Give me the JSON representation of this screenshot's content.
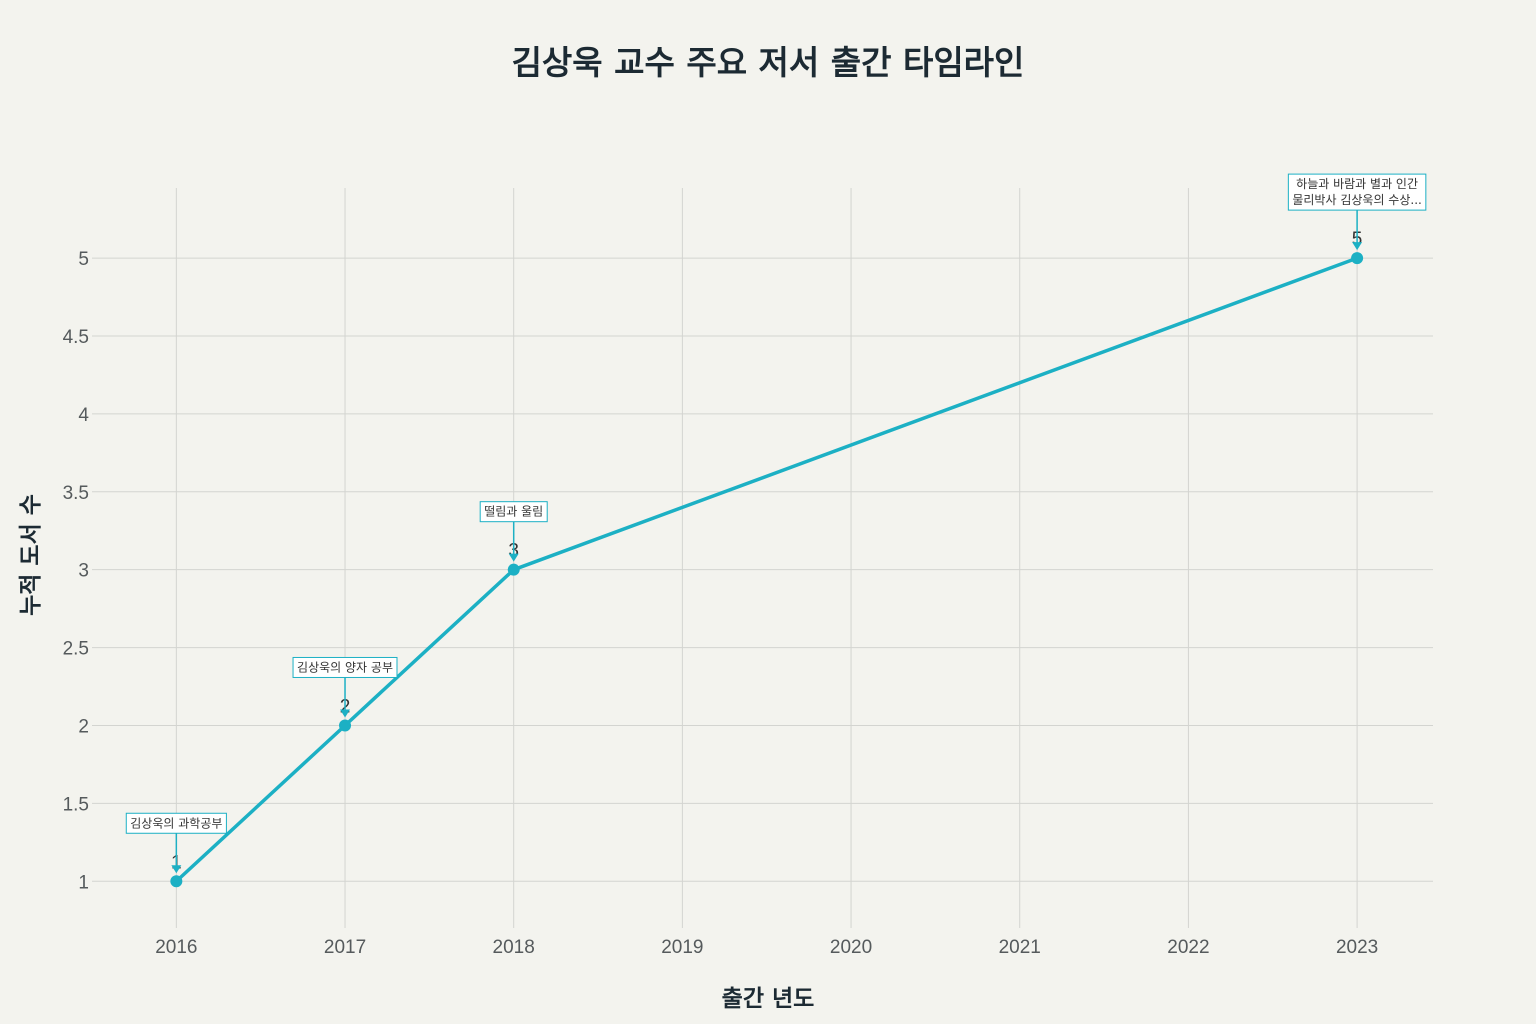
{
  "chart_data": {
    "type": "line",
    "title": "김상욱 교수 주요 저서 출간 타임라인",
    "xlabel": "출간 년도",
    "ylabel": "누적 도서 수",
    "x": [
      2016,
      2017,
      2018,
      2023
    ],
    "xlim": [
      2015.5,
      2023.45
    ],
    "ylim": [
      0.7,
      5.45
    ],
    "x_ticks": [
      2016,
      2017,
      2018,
      2019,
      2020,
      2021,
      2022,
      2023
    ],
    "y_ticks": [
      1,
      1.5,
      2,
      2.5,
      3,
      3.5,
      4,
      4.5,
      5
    ],
    "grid": true,
    "color": "#1cb0c4",
    "series": [
      {
        "values": [
          1,
          2,
          3,
          5
        ],
        "point_labels": [
          "1",
          "2",
          "3",
          "5"
        ]
      }
    ],
    "annotations": [
      {
        "x": 2016,
        "y": 1,
        "lines": [
          "김상욱의 과학공부"
        ]
      },
      {
        "x": 2017,
        "y": 2,
        "lines": [
          "김상욱의 양자 공부"
        ]
      },
      {
        "x": 2018,
        "y": 3,
        "lines": [
          "떨림과 울림"
        ]
      },
      {
        "x": 2023,
        "y": 5,
        "lines": [
          "하늘과 바람과 별과 인간",
          "물리박사 김상욱의 수상..."
        ]
      }
    ]
  }
}
